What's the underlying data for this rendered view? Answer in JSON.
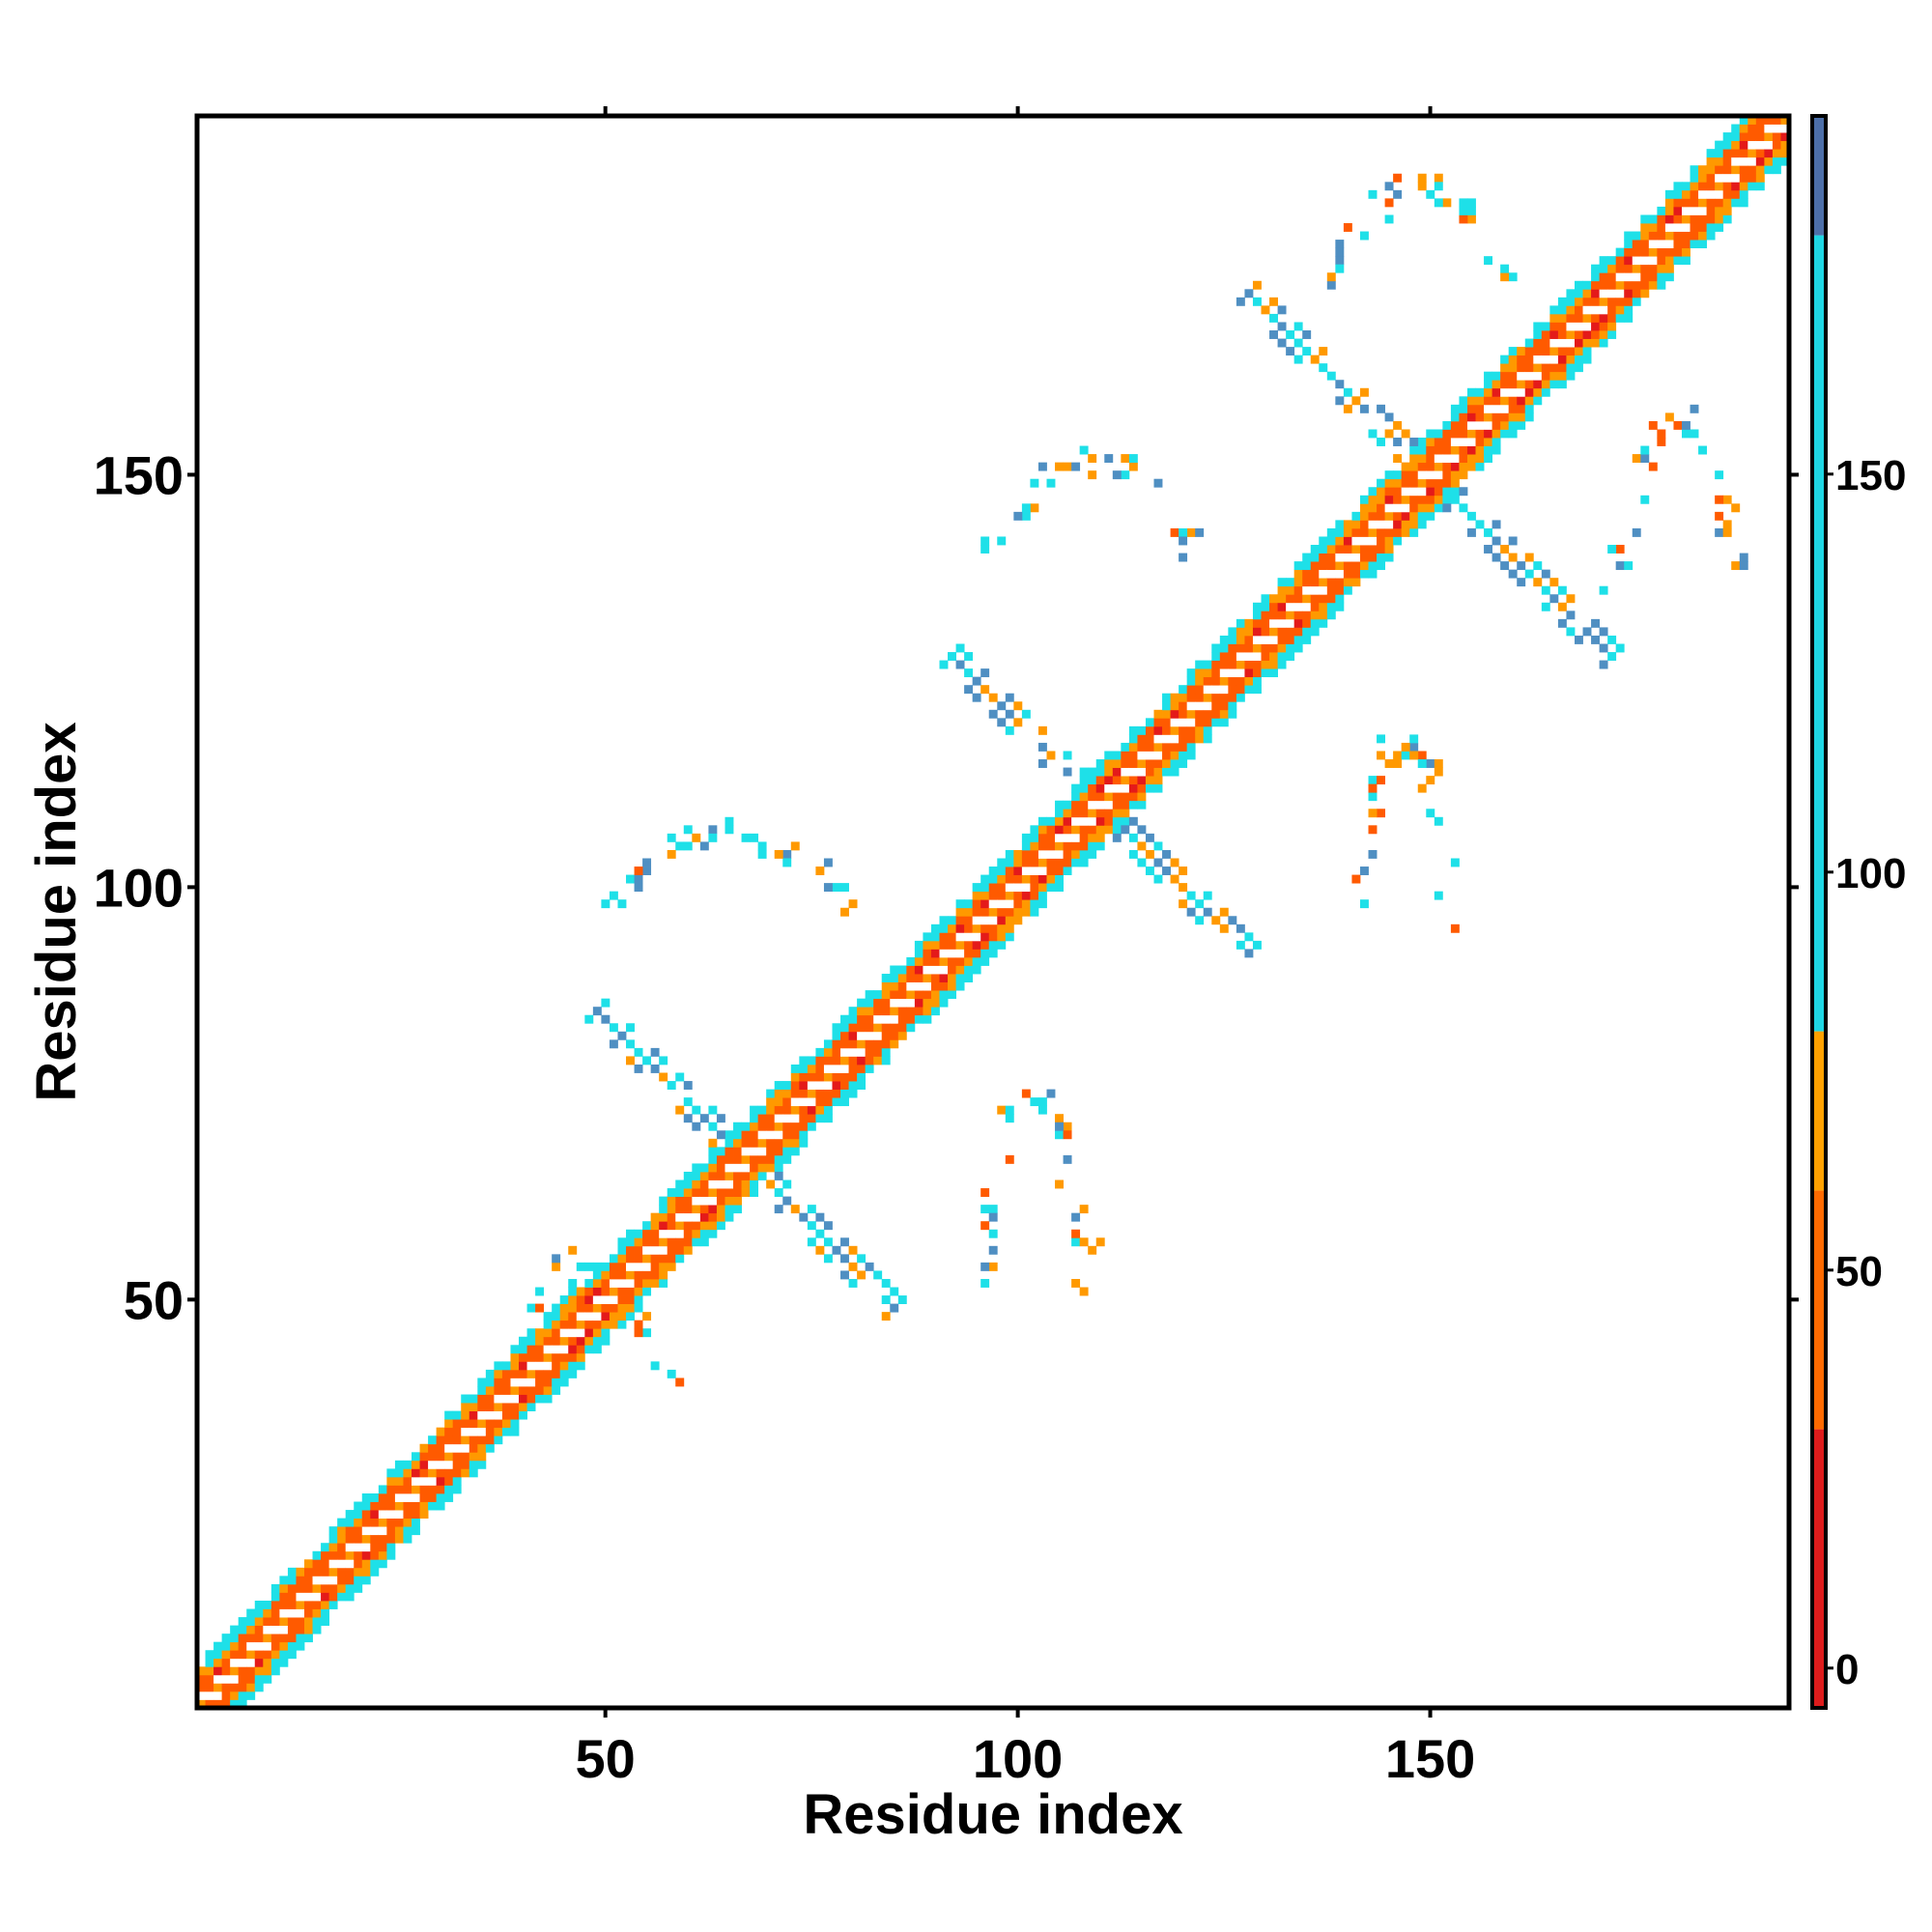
{
  "chart_data": {
    "type": "heatmap",
    "title": "",
    "xlabel": "Residue index",
    "ylabel": "Residue index",
    "xlim": [
      1,
      193
    ],
    "ylim": [
      1,
      193
    ],
    "x_ticks": [
      50,
      100,
      150
    ],
    "y_ticks": [
      50,
      100,
      150
    ],
    "x_tick_labels": [
      "50",
      "100",
      "150"
    ],
    "y_tick_labels": [
      "50",
      "100",
      "150"
    ],
    "grid": false,
    "legend": "none",
    "colorbar": {
      "placement": "right",
      "range": [
        -5,
        195
      ],
      "ticks": [
        0,
        50,
        100,
        150
      ],
      "tick_labels": [
        "0",
        "50",
        "100",
        "150"
      ],
      "bands": [
        {
          "from": -5,
          "to": 30,
          "color": "#dd1c1c"
        },
        {
          "from": 30,
          "to": 60,
          "color": "#ff6a00"
        },
        {
          "from": 60,
          "to": 80,
          "color": "#ffa100"
        },
        {
          "from": 80,
          "to": 180,
          "color": "#1fd6e3"
        },
        {
          "from": 180,
          "to": 195,
          "color": "#4d6fa8"
        }
      ]
    },
    "palette": {
      "red": "#e41a1a",
      "orange_red": "#ff5a00",
      "orange": "#ff9900",
      "cyan": "#1ee0e8",
      "steel_blue": "#4f8fc2"
    },
    "diagonal_band_halfwidth": 5,
    "off_diagonal_patterns": [
      {
        "kind": "arc",
        "x_range": [
          49,
          81
        ],
        "y_range": [
          97,
          108
        ]
      },
      {
        "kind": "cross",
        "center": [
          67,
          67
        ],
        "arm_length": 18
      },
      {
        "kind": "arc",
        "x_range": [
          38,
          58
        ],
        "y_range": [
          39,
          58
        ]
      },
      {
        "kind": "arc",
        "x_range": [
          95,
          109
        ],
        "y_range": [
          52,
          79
        ]
      },
      {
        "kind": "cross",
        "center": [
          110,
          110
        ],
        "arm_length": 18
      },
      {
        "kind": "arc",
        "x_range": [
          96,
          122
        ],
        "y_range": [
          140,
          154
        ]
      },
      {
        "kind": "arc",
        "x_range": [
          140,
          154
        ],
        "y_range": [
          94,
          122
        ]
      },
      {
        "kind": "cross",
        "center": [
          150,
          150
        ],
        "arm_length": 22
      },
      {
        "kind": "arc",
        "x_range": [
          137,
          160
        ],
        "y_range": [
          172,
          188
        ]
      },
      {
        "kind": "arc",
        "x_range": [
          172,
          188
        ],
        "y_range": [
          137,
          160
        ]
      }
    ]
  }
}
